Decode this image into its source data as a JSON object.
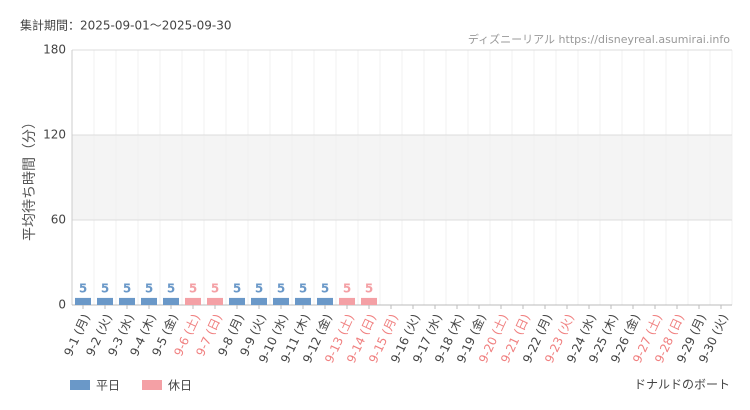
{
  "header": {
    "period": "集計期間：2025-09-01～2025-09-30",
    "source": "ディズニーリアル https://disneyreal.asumirai.info",
    "footer": "ドナルドのボート"
  },
  "chart_data": {
    "type": "bar",
    "ylabel": "平均待ち時間（分）",
    "categories": [
      "9-1 (月)",
      "9-2 (火)",
      "9-3 (水)",
      "9-4 (木)",
      "9-5 (金)",
      "9-6 (土)",
      "9-7 (日)",
      "9-8 (月)",
      "9-9 (火)",
      "9-10 (水)",
      "9-11 (木)",
      "9-12 (金)",
      "9-13 (土)",
      "9-14 (日)",
      "9-15 (月)",
      "9-16 (火)",
      "9-17 (水)",
      "9-18 (木)",
      "9-19 (金)",
      "9-20 (土)",
      "9-21 (日)",
      "9-22 (月)",
      "9-23 (火)",
      "9-24 (水)",
      "9-25 (木)",
      "9-26 (金)",
      "9-27 (土)",
      "9-28 (日)",
      "9-29 (月)",
      "9-30 (火)"
    ],
    "category_label_colors": [
      "#444",
      "#444",
      "#444",
      "#444",
      "#444",
      "#f08080",
      "#f08080",
      "#444",
      "#444",
      "#444",
      "#444",
      "#444",
      "#f08080",
      "#f08080",
      "#f08080",
      "#444",
      "#444",
      "#444",
      "#444",
      "#f08080",
      "#f08080",
      "#444",
      "#f08080",
      "#444",
      "#444",
      "#444",
      "#f08080",
      "#f08080",
      "#444",
      "#444"
    ],
    "series": [
      {
        "name": "平日",
        "color": "#6a98c8",
        "values": [
          5,
          5,
          5,
          5,
          5,
          null,
          null,
          5,
          5,
          5,
          5,
          5,
          null,
          null,
          null,
          null,
          null,
          null,
          null,
          null,
          null,
          null,
          null,
          null,
          null,
          null,
          null,
          null,
          null,
          null
        ]
      },
      {
        "name": "休日",
        "color": "#f4a0a5",
        "values": [
          null,
          null,
          null,
          null,
          null,
          5,
          5,
          null,
          null,
          null,
          null,
          null,
          5,
          5,
          null,
          null,
          null,
          null,
          null,
          null,
          null,
          null,
          null,
          null,
          null,
          null,
          null,
          null,
          null,
          null
        ]
      }
    ],
    "ylim": [
      0,
      180
    ],
    "yticks": [
      0,
      60,
      120,
      180
    ],
    "shaded_band": [
      60,
      120
    ],
    "grid": true
  }
}
